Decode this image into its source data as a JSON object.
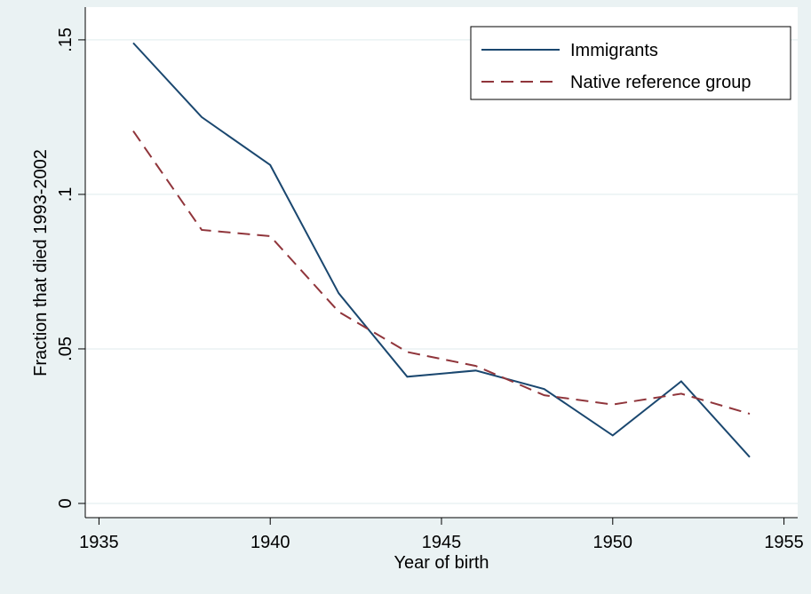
{
  "chart_data": {
    "type": "line",
    "x_label": "Year of birth",
    "y_label": "Fraction that died 1993-2002",
    "x": [
      1936,
      1938,
      1940,
      1942,
      1944,
      1946,
      1948,
      1950,
      1952,
      1954
    ],
    "series": [
      {
        "name": "Immigrants",
        "color": "#1a476f",
        "dash": false,
        "values": [
          0.149,
          0.125,
          0.1095,
          0.068,
          0.041,
          0.043,
          0.037,
          0.022,
          0.0395,
          0.015
        ]
      },
      {
        "name": "Native reference group",
        "color": "#90353b",
        "dash": true,
        "values": [
          0.1205,
          0.0885,
          0.0865,
          0.062,
          0.049,
          0.0445,
          0.035,
          0.032,
          0.0355,
          0.029
        ]
      }
    ],
    "xlim": [
      1934.6,
      1955.4
    ],
    "ylim": [
      -0.0046,
      0.1606
    ],
    "xticks": [
      1935,
      1940,
      1945,
      1950,
      1955
    ],
    "yticks": [
      0,
      {
        "value": 0.05,
        "label": ".05"
      },
      {
        "value": 0.1,
        "label": ".1"
      },
      {
        "value": 0.15,
        "label": ".15"
      }
    ],
    "grid": true,
    "legend": "top-right"
  }
}
